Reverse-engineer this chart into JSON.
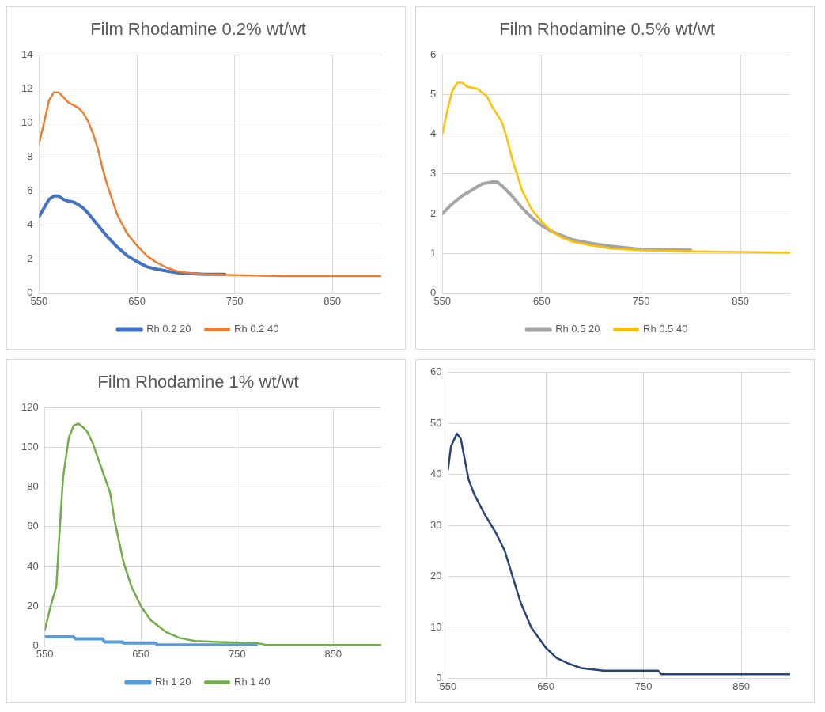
{
  "chart_data": [
    {
      "type": "line",
      "title": "Film Rhodamine 0.2% wt/wt",
      "xlim": [
        550,
        900
      ],
      "xticks": [
        550,
        650,
        750,
        850
      ],
      "ylim": [
        0,
        14
      ],
      "yticks": [
        0,
        2,
        4,
        6,
        8,
        10,
        12,
        14
      ],
      "grid": true,
      "legend": "bottom",
      "marker": "none",
      "line_style": "solid",
      "series": [
        {
          "name": "Rh 0.2 20",
          "color": "#4472c4",
          "x": [
            550,
            555,
            560,
            565,
            570,
            575,
            580,
            585,
            590,
            595,
            600,
            610,
            620,
            630,
            640,
            650,
            660,
            670,
            680,
            690,
            700,
            720,
            740
          ],
          "values": [
            4.5,
            5.0,
            5.5,
            5.7,
            5.7,
            5.5,
            5.4,
            5.35,
            5.2,
            5.0,
            4.7,
            4.0,
            3.3,
            2.7,
            2.2,
            1.85,
            1.55,
            1.4,
            1.3,
            1.2,
            1.15,
            1.1,
            1.1
          ]
        },
        {
          "name": "Rh 0.2 40",
          "color": "#ed7d31",
          "x": [
            550,
            555,
            560,
            565,
            570,
            575,
            580,
            590,
            595,
            600,
            605,
            610,
            615,
            620,
            630,
            640,
            650,
            660,
            670,
            680,
            690,
            700,
            720,
            750,
            800,
            900
          ],
          "values": [
            8.8,
            10.0,
            11.3,
            11.8,
            11.8,
            11.5,
            11.2,
            10.9,
            10.6,
            10.1,
            9.4,
            8.5,
            7.3,
            6.3,
            4.6,
            3.5,
            2.8,
            2.2,
            1.8,
            1.5,
            1.3,
            1.2,
            1.1,
            1.05,
            1.0,
            1.0
          ]
        }
      ]
    },
    {
      "type": "line",
      "title": "Film Rhodamine 0.5% wt/wt",
      "xlim": [
        550,
        900
      ],
      "xticks": [
        550,
        650,
        750,
        850
      ],
      "ylim": [
        0,
        6
      ],
      "yticks": [
        0,
        1,
        2,
        3,
        4,
        5,
        6
      ],
      "grid": true,
      "legend": "bottom",
      "marker": "none",
      "line_style": "solid",
      "series": [
        {
          "name": "Rh 0.5 20",
          "color": "#a5a5a5",
          "x": [
            550,
            560,
            570,
            580,
            590,
            600,
            605,
            610,
            620,
            630,
            640,
            650,
            660,
            670,
            680,
            700,
            720,
            750,
            800
          ],
          "values": [
            2.0,
            2.25,
            2.45,
            2.6,
            2.75,
            2.8,
            2.8,
            2.7,
            2.45,
            2.15,
            1.9,
            1.7,
            1.55,
            1.45,
            1.35,
            1.25,
            1.18,
            1.1,
            1.08
          ]
        },
        {
          "name": "Rh 0.5 40",
          "color": "#ffc000",
          "x": [
            550,
            555,
            560,
            565,
            570,
            575,
            585,
            595,
            600,
            610,
            615,
            620,
            630,
            640,
            650,
            660,
            670,
            680,
            700,
            720,
            750,
            800,
            900
          ],
          "values": [
            4.0,
            4.6,
            5.1,
            5.3,
            5.3,
            5.2,
            5.15,
            4.95,
            4.7,
            4.3,
            3.9,
            3.4,
            2.6,
            2.1,
            1.8,
            1.55,
            1.4,
            1.3,
            1.2,
            1.12,
            1.08,
            1.05,
            1.02
          ]
        }
      ]
    },
    {
      "type": "line",
      "title": "Film Rhodamine 1% wt/wt",
      "xlim": [
        550,
        900
      ],
      "xticks": [
        550,
        650,
        750,
        850
      ],
      "ylim": [
        0,
        120
      ],
      "yticks": [
        0,
        20,
        40,
        60,
        80,
        100,
        120
      ],
      "grid": true,
      "legend": "bottom",
      "marker": "none",
      "line_style": "solid",
      "series": [
        {
          "name": "Rh 1 20",
          "color": "#5b9bd5",
          "x": [
            550,
            580,
            582,
            610,
            612,
            630,
            632,
            665,
            667,
            770
          ],
          "values": [
            4.5,
            4.5,
            3.5,
            3.5,
            2,
            2,
            1.5,
            1.5,
            0.5,
            0.5
          ]
        },
        {
          "name": "Rh 1 40",
          "color": "#70ad47",
          "x": [
            550,
            556,
            562,
            565,
            569,
            575,
            580,
            585,
            590,
            594,
            600,
            610,
            618,
            623,
            632,
            640,
            650,
            660,
            676,
            690,
            706,
            730,
            770,
            780,
            900
          ],
          "values": [
            8,
            20,
            30,
            55,
            85,
            105,
            111,
            112,
            110,
            108,
            102,
            88,
            77,
            62,
            42,
            30,
            20,
            13,
            7,
            4,
            2.5,
            2,
            1.5,
            0.5,
            0.5
          ]
        }
      ]
    },
    {
      "type": "line",
      "xlim": [
        550,
        900
      ],
      "xticks": [
        550,
        650,
        750,
        850
      ],
      "ylim": [
        0,
        60
      ],
      "yticks": [
        0,
        10,
        20,
        30,
        40,
        50,
        60
      ],
      "grid": true,
      "marker": "none",
      "line_style": "solid",
      "series": [
        {
          "color": "#264478",
          "x": [
            550,
            553,
            559,
            563,
            571,
            577,
            588,
            599,
            608,
            616,
            624,
            635,
            650,
            661,
            672,
            686,
            709,
            765,
            768,
            900
          ],
          "values": [
            41,
            45.5,
            48,
            47,
            39,
            36,
            32,
            28.5,
            25,
            20,
            15,
            10,
            6,
            4,
            3,
            2,
            1.5,
            1.5,
            0.8,
            0.8
          ]
        }
      ]
    }
  ]
}
